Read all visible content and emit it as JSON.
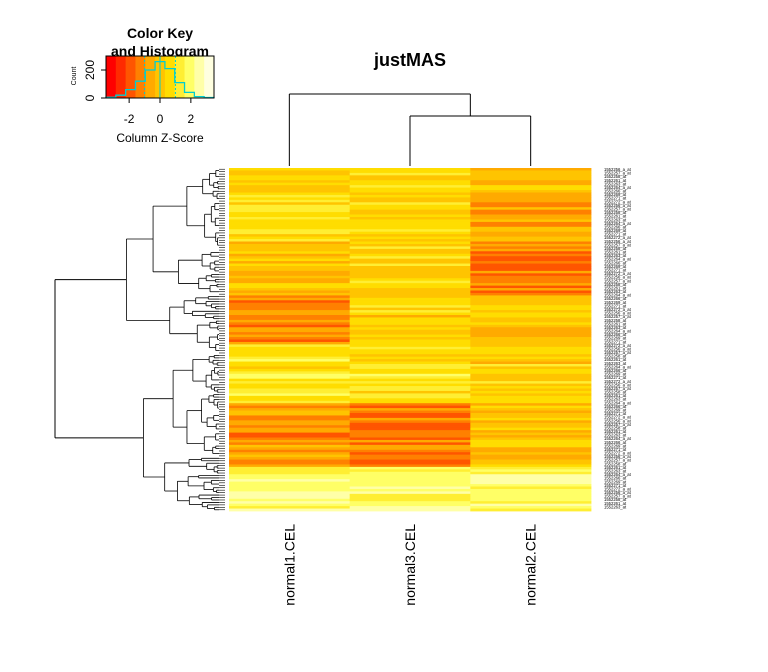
{
  "chart_data": {
    "type": "heatmap",
    "title": "justMAS",
    "columns": [
      "normal1.CEL",
      "normal3.CEL",
      "normal2.CEL"
    ],
    "color_key": {
      "title_line1": "Color Key",
      "title_line2": "and Histogram",
      "xlabel": "Column Z-Score",
      "ylabel": "Count",
      "x_ticks": [
        "-2",
        "0",
        "2"
      ],
      "y_ticks": [
        "0",
        "200"
      ],
      "x_range": [
        -3.5,
        3.5
      ],
      "histogram_counts": [
        5,
        20,
        60,
        120,
        200,
        260,
        210,
        110,
        40,
        10,
        3
      ],
      "colors": [
        "#ff0000",
        "#ff2a00",
        "#ff5500",
        "#ff8000",
        "#ffaa00",
        "#ffc400",
        "#ffdd00",
        "#ffee33",
        "#ffff66",
        "#ffffa8",
        "#ffffe0"
      ],
      "histogram_color": "#00ced1"
    },
    "row_label_sample": [
      "1552256_a_at",
      "1552257_a_at",
      "1552258_at",
      "1552261_at",
      "1552263_at",
      "1552264_a_at",
      "1552266_at",
      "1552269_at",
      "1552271_at",
      "1552272_a_at"
    ]
  }
}
